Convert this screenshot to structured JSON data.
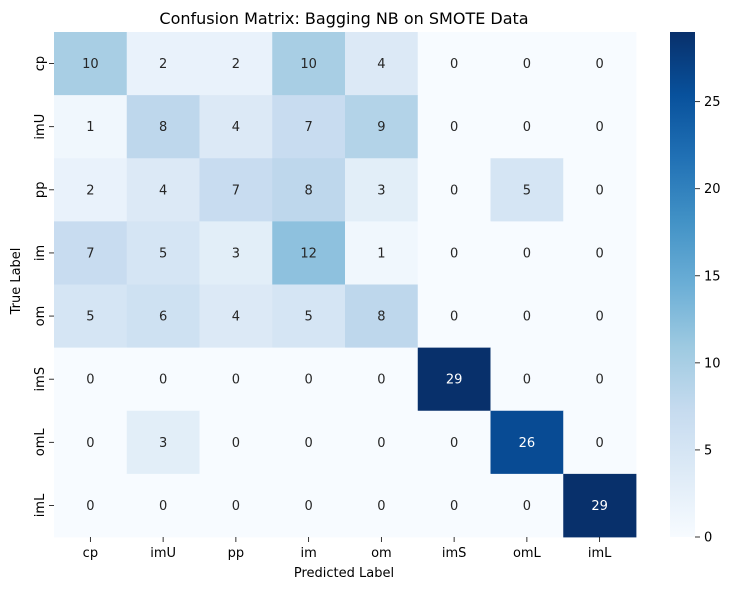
{
  "chart_data": {
    "type": "heatmap",
    "title": "Confusion Matrix: Bagging NB on SMOTE Data",
    "xlabel": "Predicted Label",
    "ylabel": "True Label",
    "x_categories": [
      "cp",
      "imU",
      "pp",
      "im",
      "om",
      "imS",
      "omL",
      "imL"
    ],
    "y_categories": [
      "cp",
      "imU",
      "pp",
      "im",
      "om",
      "imS",
      "omL",
      "imL"
    ],
    "matrix": [
      [
        10,
        2,
        2,
        10,
        4,
        0,
        0,
        0
      ],
      [
        1,
        8,
        4,
        7,
        9,
        0,
        0,
        0
      ],
      [
        2,
        4,
        7,
        8,
        3,
        0,
        5,
        0
      ],
      [
        7,
        5,
        3,
        12,
        1,
        0,
        0,
        0
      ],
      [
        5,
        6,
        4,
        5,
        8,
        0,
        0,
        0
      ],
      [
        0,
        0,
        0,
        0,
        0,
        29,
        0,
        0
      ],
      [
        0,
        3,
        0,
        0,
        0,
        0,
        26,
        0
      ],
      [
        0,
        0,
        0,
        0,
        0,
        0,
        0,
        29
      ]
    ],
    "colorbar": {
      "min": 0,
      "max": 29,
      "ticks": [
        0,
        5,
        10,
        15,
        20,
        25
      ],
      "colormap": "Blues"
    }
  }
}
